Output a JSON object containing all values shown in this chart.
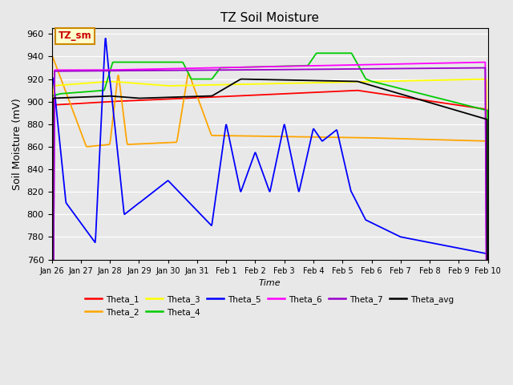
{
  "title": "TZ Soil Moisture",
  "xlabel": "Time",
  "ylabel": "Soil Moisture (mV)",
  "ylim": [
    760,
    965
  ],
  "yticks": [
    760,
    780,
    800,
    820,
    840,
    860,
    880,
    900,
    920,
    940,
    960
  ],
  "date_labels": [
    "Jan 26",
    "Jan 27",
    "Jan 28",
    "Jan 29",
    "Jan 30",
    "Jan 31",
    "Feb 1",
    "Feb 2",
    "Feb 3",
    "Feb 4",
    "Feb 5",
    "Feb 6",
    "Feb 7",
    "Feb 8",
    "Feb 9",
    "Feb 10"
  ],
  "legend_entries": [
    "Theta_1",
    "Theta_2",
    "Theta_3",
    "Theta_4",
    "Theta_5",
    "Theta_6",
    "Theta_7",
    "Theta_avg"
  ],
  "colors": {
    "Theta_1": "#ff0000",
    "Theta_2": "#ffa500",
    "Theta_3": "#ffff00",
    "Theta_4": "#00cc00",
    "Theta_5": "#0000ff",
    "Theta_6": "#ff00ff",
    "Theta_7": "#9900cc",
    "Theta_avg": "#000000"
  },
  "bg_color": "#e8e8e8",
  "plot_bg": "#e8e8e8",
  "annotation_box": {
    "text": "TZ_sm",
    "color": "#cc0000",
    "bg": "#ffffcc"
  },
  "num_points": 1500
}
